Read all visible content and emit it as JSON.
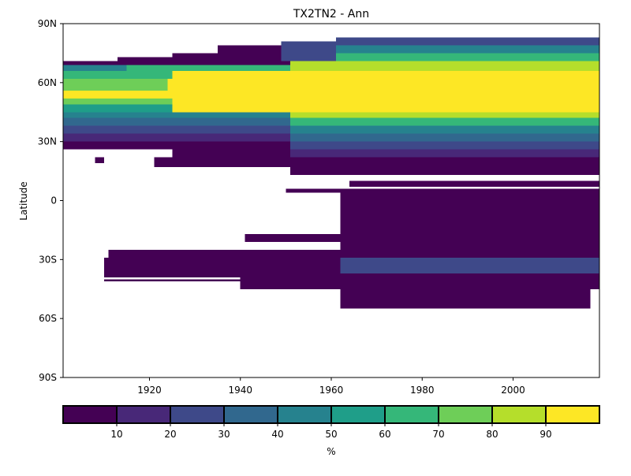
{
  "chart_data": {
    "type": "heatmap",
    "title": "TX2TN2 - Ann",
    "xlabel": "",
    "ylabel": "Latitude",
    "xlim": [
      1901,
      2019
    ],
    "ylim": [
      -90,
      90
    ],
    "x_ticks": [
      1920,
      1940,
      1960,
      1980,
      2000
    ],
    "x_tick_labels": [
      "1920",
      "1940",
      "1960",
      "1980",
      "2000"
    ],
    "y_ticks": [
      90,
      60,
      30,
      0,
      -30,
      -60,
      -90
    ],
    "y_tick_labels": [
      "90N",
      "60N",
      "30N",
      "0",
      "30S",
      "60S",
      "90S"
    ],
    "grid": false,
    "colormap": "viridis",
    "colorbar": {
      "label": "%",
      "bounds": [
        0,
        10,
        20,
        30,
        40,
        50,
        60,
        70,
        80,
        90,
        100
      ],
      "tick_values": [
        10,
        20,
        30,
        40,
        50,
        60,
        70,
        80,
        90
      ],
      "tick_labels": [
        "10",
        "20",
        "30",
        "40",
        "50",
        "60",
        "70",
        "80",
        "90"
      ],
      "colors": [
        "#440154",
        "#482878",
        "#3e4989",
        "#31688e",
        "#26828e",
        "#1f9e89",
        "#35b779",
        "#6ece58",
        "#b5de2b",
        "#fde725"
      ]
    },
    "regions": [
      {
        "x": [
          1901,
          1951
        ],
        "lat": [
          71,
          69
        ],
        "value": 5
      },
      {
        "x": [
          1913,
          1925
        ],
        "lat": [
          73,
          71
        ],
        "value": 5
      },
      {
        "x": [
          1925,
          1935
        ],
        "lat": [
          75,
          71
        ],
        "value": 5
      },
      {
        "x": [
          1935,
          1949
        ],
        "lat": [
          79,
          71
        ],
        "value": 5
      },
      {
        "x": [
          1949,
          1961
        ],
        "lat": [
          81,
          71
        ],
        "value": 25
      },
      {
        "x": [
          1961,
          2019
        ],
        "lat": [
          83,
          79
        ],
        "value": 25
      },
      {
        "x": [
          1961,
          2019
        ],
        "lat": [
          79,
          75
        ],
        "value": 45
      },
      {
        "x": [
          1961,
          2019
        ],
        "lat": [
          75,
          71
        ],
        "value": 65
      },
      {
        "x": [
          1901,
          1915
        ],
        "lat": [
          69,
          66
        ],
        "value": 45
      },
      {
        "x": [
          1915,
          1951
        ],
        "lat": [
          69,
          66
        ],
        "value": 65
      },
      {
        "x": [
          1951,
          2019
        ],
        "lat": [
          71,
          66
        ],
        "value": 85
      },
      {
        "x": [
          1901,
          1925
        ],
        "lat": [
          66,
          62
        ],
        "value": 65
      },
      {
        "x": [
          1925,
          2019
        ],
        "lat": [
          66,
          62
        ],
        "value": 95
      },
      {
        "x": [
          1901,
          1924
        ],
        "lat": [
          62,
          56
        ],
        "value": 75
      },
      {
        "x": [
          1924,
          2019
        ],
        "lat": [
          62,
          56
        ],
        "value": 95
      },
      {
        "x": [
          1901,
          1924
        ],
        "lat": [
          56,
          52
        ],
        "value": 95
      },
      {
        "x": [
          1924,
          2019
        ],
        "lat": [
          56,
          52
        ],
        "value": 95
      },
      {
        "x": [
          1901,
          1925
        ],
        "lat": [
          52,
          49
        ],
        "value": 75
      },
      {
        "x": [
          1925,
          2019
        ],
        "lat": [
          52,
          45
        ],
        "value": 95
      },
      {
        "x": [
          1901,
          1925
        ],
        "lat": [
          49,
          45
        ],
        "value": 55
      },
      {
        "x": [
          1901,
          1951
        ],
        "lat": [
          45,
          42
        ],
        "value": 45
      },
      {
        "x": [
          1951,
          2019
        ],
        "lat": [
          45,
          42
        ],
        "value": 85
      },
      {
        "x": [
          1901,
          1951
        ],
        "lat": [
          42,
          38
        ],
        "value": 35
      },
      {
        "x": [
          1951,
          2019
        ],
        "lat": [
          42,
          38
        ],
        "value": 65
      },
      {
        "x": [
          1901,
          1951
        ],
        "lat": [
          38,
          34
        ],
        "value": 25
      },
      {
        "x": [
          1951,
          2019
        ],
        "lat": [
          38,
          34
        ],
        "value": 45
      },
      {
        "x": [
          1901,
          1951
        ],
        "lat": [
          34,
          30
        ],
        "value": 15
      },
      {
        "x": [
          1951,
          2019
        ],
        "lat": [
          34,
          30
        ],
        "value": 35
      },
      {
        "x": [
          1901,
          1951
        ],
        "lat": [
          30,
          26
        ],
        "value": 5
      },
      {
        "x": [
          1951,
          2019
        ],
        "lat": [
          30,
          26
        ],
        "value": 25
      },
      {
        "x": [
          1925,
          1951
        ],
        "lat": [
          26,
          22
        ],
        "value": 5
      },
      {
        "x": [
          1951,
          2019
        ],
        "lat": [
          26,
          22
        ],
        "value": 15
      },
      {
        "x": [
          1921,
          2019
        ],
        "lat": [
          22,
          17
        ],
        "value": 5
      },
      {
        "x": [
          1951,
          2019
        ],
        "lat": [
          17,
          13
        ],
        "value": 5
      },
      {
        "x": [
          1908,
          1910
        ],
        "lat": [
          22,
          19
        ],
        "value": 5
      },
      {
        "x": [
          1964,
          2019
        ],
        "lat": [
          10,
          7
        ],
        "value": 5
      },
      {
        "x": [
          1950,
          1961
        ],
        "lat": [
          6,
          4
        ],
        "value": 5
      },
      {
        "x": [
          1961,
          2019
        ],
        "lat": [
          6,
          4
        ],
        "value": 5
      },
      {
        "x": [
          1962,
          2019
        ],
        "lat": [
          4,
          0
        ],
        "value": 5
      },
      {
        "x": [
          1962,
          2019
        ],
        "lat": [
          0,
          -15
        ],
        "value": 5
      },
      {
        "x": [
          1962,
          2019
        ],
        "lat": [
          -15,
          -25
        ],
        "value": 5
      },
      {
        "x": [
          1941,
          1962
        ],
        "lat": [
          -17,
          -21
        ],
        "value": 5
      },
      {
        "x": [
          1911,
          1962
        ],
        "lat": [
          -25,
          -29
        ],
        "value": 5
      },
      {
        "x": [
          1962,
          2019
        ],
        "lat": [
          -25,
          -29
        ],
        "value": 5
      },
      {
        "x": [
          1962,
          2019
        ],
        "lat": [
          -29,
          -37
        ],
        "value": 25
      },
      {
        "x": [
          1910,
          1962
        ],
        "lat": [
          -29,
          -37
        ],
        "value": 5
      },
      {
        "x": [
          1910,
          1962
        ],
        "lat": [
          -37,
          -39
        ],
        "value": 5
      },
      {
        "x": [
          1910,
          1940
        ],
        "lat": [
          -40,
          -41
        ],
        "value": 5
      },
      {
        "x": [
          1940,
          1962
        ],
        "lat": [
          -39,
          -45
        ],
        "value": 5
      },
      {
        "x": [
          1962,
          2019
        ],
        "lat": [
          -37,
          -45
        ],
        "value": 5
      },
      {
        "x": [
          1962,
          2017
        ],
        "lat": [
          -45,
          -55
        ],
        "value": 5
      }
    ]
  }
}
